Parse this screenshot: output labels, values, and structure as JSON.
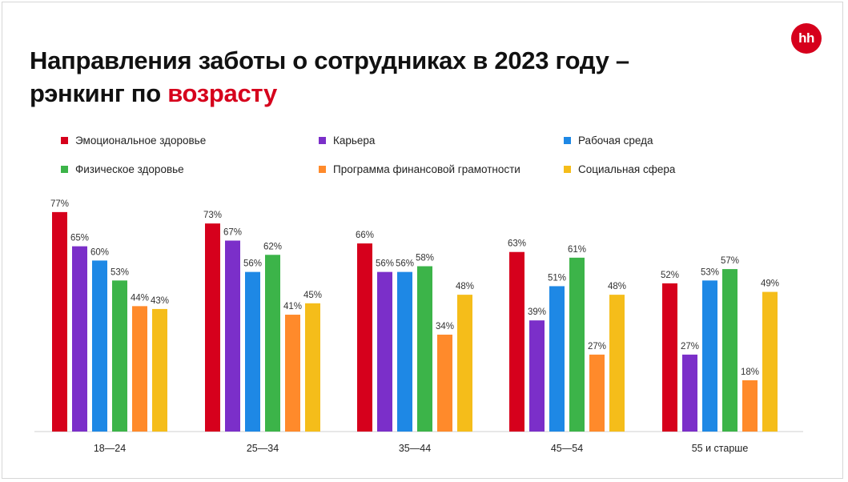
{
  "slide": {
    "title_line1": "Направления заботы о сотрудниках в 2023 году –",
    "title_line2_prefix": "рэнкинг по",
    "title_line2_accent": "возрасту",
    "accent_color": "#d6001c",
    "logo_text": "hh",
    "logo_color": "#d6001c"
  },
  "chart_data": {
    "type": "bar",
    "categories": [
      "18—24",
      "25—34",
      "35—44",
      "45—54",
      "55 и старше"
    ],
    "value_suffix": "%",
    "ylim": [
      0,
      100
    ],
    "grid": false,
    "legend_position": "top",
    "series": [
      {
        "name": "Эмоциональное здоровье",
        "color": "#d6001c",
        "values": [
          77,
          73,
          66,
          63,
          52
        ]
      },
      {
        "name": "Карьера",
        "color": "#7b2fc9",
        "values": [
          65,
          67,
          56,
          39,
          27
        ]
      },
      {
        "name": "Рабочая среда",
        "color": "#1e88e5",
        "values": [
          60,
          56,
          56,
          51,
          53
        ]
      },
      {
        "name": "Физическое здоровье",
        "color": "#3cb449",
        "values": [
          53,
          62,
          58,
          61,
          57
        ]
      },
      {
        "name": "Программа финансовой грамотности",
        "color": "#ff8a2b",
        "values": [
          44,
          41,
          34,
          27,
          18
        ]
      },
      {
        "name": "Социальная сфера",
        "color": "#f5bd1a",
        "values": [
          43,
          45,
          48,
          48,
          49
        ]
      }
    ]
  }
}
